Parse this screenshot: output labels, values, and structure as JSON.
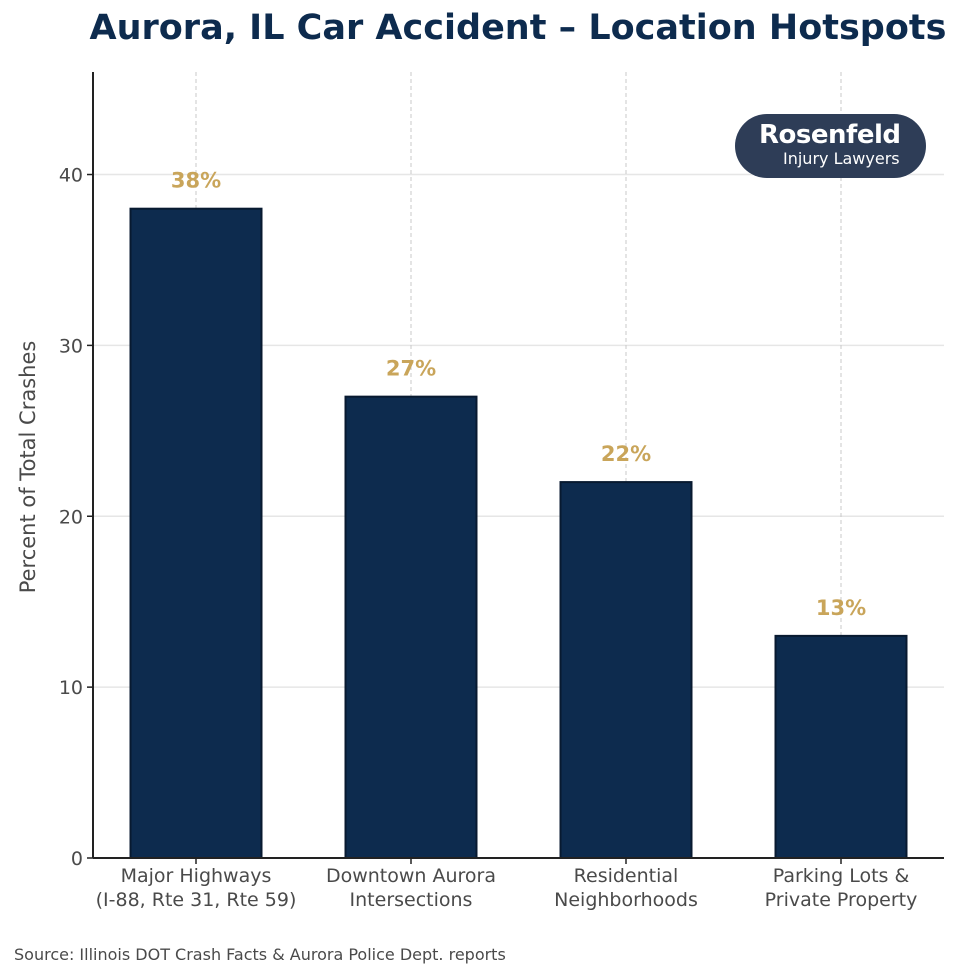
{
  "chart_data": {
    "type": "bar",
    "title": "Aurora, IL Car Accident – Location Hotspots",
    "ylabel": "Percent of Total Crashes",
    "xlabel": "",
    "categories": [
      [
        "Major Highways",
        "(I-88, Rte 31, Rte 59)"
      ],
      [
        "Downtown Aurora",
        "Intersections"
      ],
      [
        "Residential",
        "Neighborhoods"
      ],
      [
        "Parking Lots &",
        "Private Property"
      ]
    ],
    "values": [
      38,
      27,
      22,
      13
    ],
    "data_labels": [
      "38%",
      "27%",
      "22%",
      "13%"
    ],
    "ylim": [
      0,
      46
    ],
    "yticks": [
      0,
      10,
      20,
      30,
      40
    ],
    "grid": true,
    "colors": {
      "bar": "#0d2b4e",
      "bar_edge": "#081a30",
      "data_label": "#c9a55a",
      "grid": "#e6e6e6",
      "title": "#0d2b4e"
    }
  },
  "logo": {
    "name": "Rosenfeld",
    "tagline": "Injury Lawyers",
    "background": "#2e3d57"
  },
  "source": "Source: Illinois DOT Crash Facts & Aurora Police Dept. reports"
}
